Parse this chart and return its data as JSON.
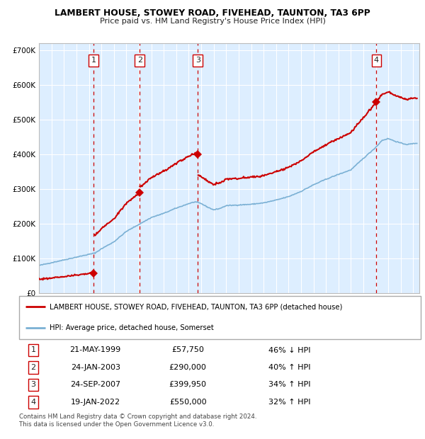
{
  "title": "LAMBERT HOUSE, STOWEY ROAD, FIVEHEAD, TAUNTON, TA3 6PP",
  "subtitle": "Price paid vs. HM Land Registry's House Price Index (HPI)",
  "legend_label_red": "LAMBERT HOUSE, STOWEY ROAD, FIVEHEAD, TAUNTON, TA3 6PP (detached house)",
  "legend_label_blue": "HPI: Average price, detached house, Somerset",
  "footer1": "Contains HM Land Registry data © Crown copyright and database right 2024.",
  "footer2": "This data is licensed under the Open Government Licence v3.0.",
  "transactions": [
    {
      "num": 1,
      "date": "21-MAY-1999",
      "year": 1999.38,
      "price": 57750,
      "hpi_pct": "46% ↓ HPI"
    },
    {
      "num": 2,
      "date": "24-JAN-2003",
      "year": 2003.07,
      "price": 290000,
      "hpi_pct": "40% ↑ HPI"
    },
    {
      "num": 3,
      "date": "24-SEP-2007",
      "year": 2007.73,
      "price": 399950,
      "hpi_pct": "34% ↑ HPI"
    },
    {
      "num": 4,
      "date": "19-JAN-2022",
      "year": 2022.05,
      "price": 550000,
      "hpi_pct": "32% ↑ HPI"
    }
  ],
  "ylim": [
    0,
    720000
  ],
  "xlim_start": 1995.0,
  "xlim_end": 2025.5,
  "plot_bg_color": "#ddeeff",
  "red_color": "#cc0000",
  "blue_color": "#7ab0d4",
  "grid_color": "#ffffff",
  "hpi_base_points": [
    [
      1995.0,
      80000
    ],
    [
      1996.0,
      88000
    ],
    [
      1997.0,
      96000
    ],
    [
      1998.0,
      104000
    ],
    [
      1999.0,
      112000
    ],
    [
      1999.5,
      116000
    ],
    [
      2000.0,
      128000
    ],
    [
      2001.0,
      148000
    ],
    [
      2002.0,
      178000
    ],
    [
      2003.0,
      198000
    ],
    [
      2004.0,
      218000
    ],
    [
      2005.0,
      230000
    ],
    [
      2006.0,
      245000
    ],
    [
      2007.0,
      258000
    ],
    [
      2007.5,
      263000
    ],
    [
      2008.0,
      258000
    ],
    [
      2008.5,
      248000
    ],
    [
      2009.0,
      240000
    ],
    [
      2009.5,
      244000
    ],
    [
      2010.0,
      252000
    ],
    [
      2011.0,
      254000
    ],
    [
      2012.0,
      256000
    ],
    [
      2013.0,
      260000
    ],
    [
      2014.0,
      268000
    ],
    [
      2015.0,
      278000
    ],
    [
      2016.0,
      293000
    ],
    [
      2017.0,
      312000
    ],
    [
      2018.0,
      328000
    ],
    [
      2019.0,
      342000
    ],
    [
      2020.0,
      355000
    ],
    [
      2021.0,
      388000
    ],
    [
      2022.0,
      420000
    ],
    [
      2022.5,
      440000
    ],
    [
      2023.0,
      445000
    ],
    [
      2023.5,
      438000
    ],
    [
      2024.0,
      432000
    ],
    [
      2024.5,
      428000
    ],
    [
      2025.3,
      432000
    ]
  ]
}
